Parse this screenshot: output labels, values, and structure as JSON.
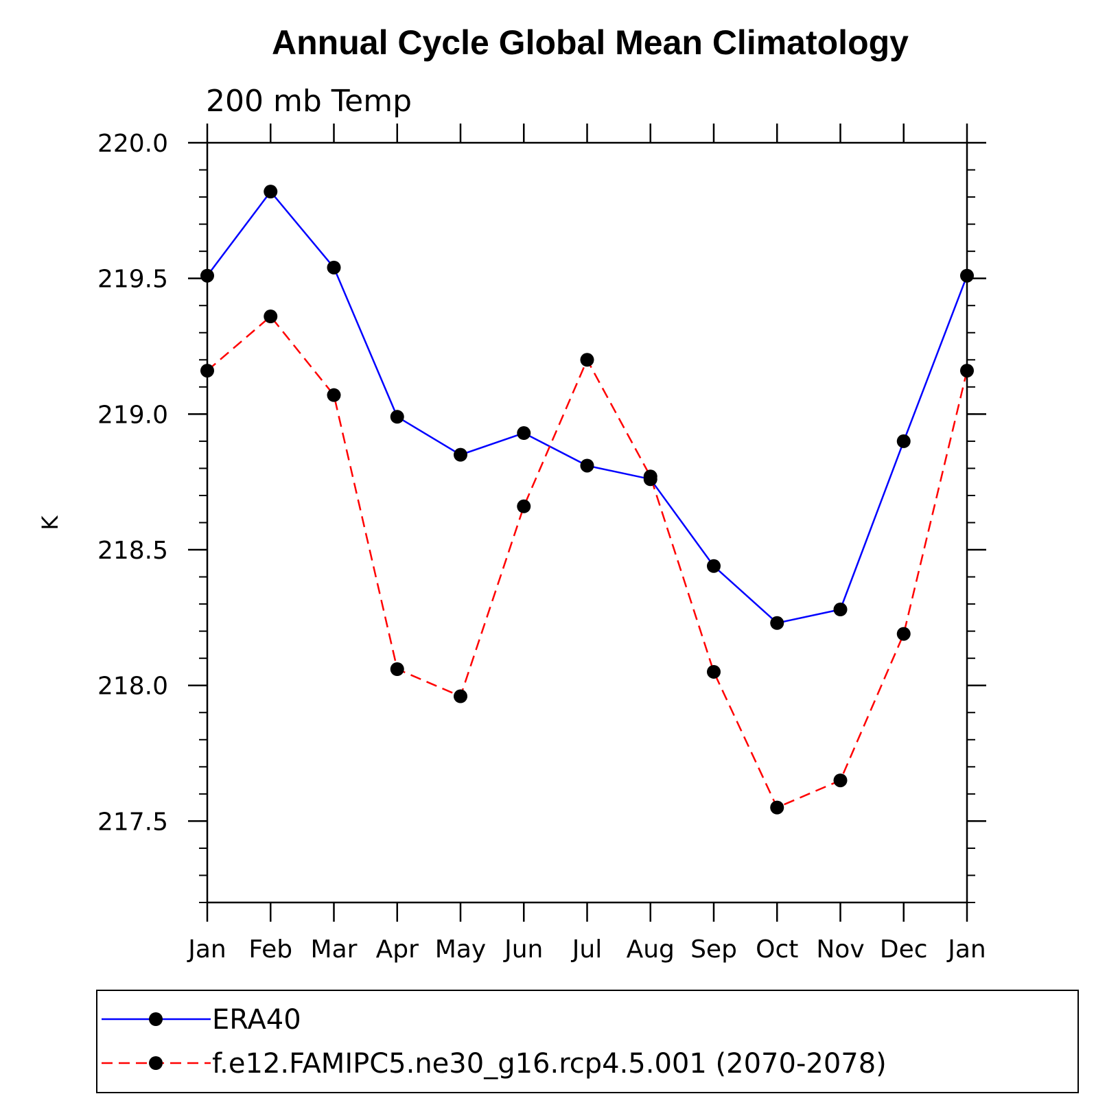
{
  "chart_data": {
    "type": "line",
    "title": "Annual Cycle Global Mean Climatology",
    "subtitle": "200 mb Temp",
    "xlabel": "",
    "ylabel": "K",
    "categories": [
      "Jan",
      "Feb",
      "Mar",
      "Apr",
      "May",
      "Jun",
      "Jul",
      "Aug",
      "Sep",
      "Oct",
      "Nov",
      "Dec",
      "Jan"
    ],
    "ylim": [
      217.2,
      220.0
    ],
    "yticks": [
      217.5,
      218.0,
      218.5,
      219.0,
      219.5,
      220.0
    ],
    "ytick_labels": [
      "217.5",
      "218.0",
      "218.5",
      "219.0",
      "219.5",
      "220.0"
    ],
    "series": [
      {
        "name": "ERA40",
        "color": "#0000ff",
        "dash": "solid",
        "values": [
          219.51,
          219.82,
          219.54,
          218.99,
          218.85,
          218.93,
          218.81,
          218.76,
          218.44,
          218.23,
          218.28,
          218.9,
          219.51
        ]
      },
      {
        "name": "f.e12.FAMIPC5.ne30_g16.rcp4.5.001 (2070-2078)",
        "color": "#ff0000",
        "dash": "dashed",
        "values": [
          219.16,
          219.36,
          219.07,
          218.06,
          217.96,
          218.66,
          219.2,
          218.77,
          218.05,
          217.55,
          217.65,
          218.19,
          219.16
        ]
      }
    ],
    "legend_position": "bottom"
  }
}
